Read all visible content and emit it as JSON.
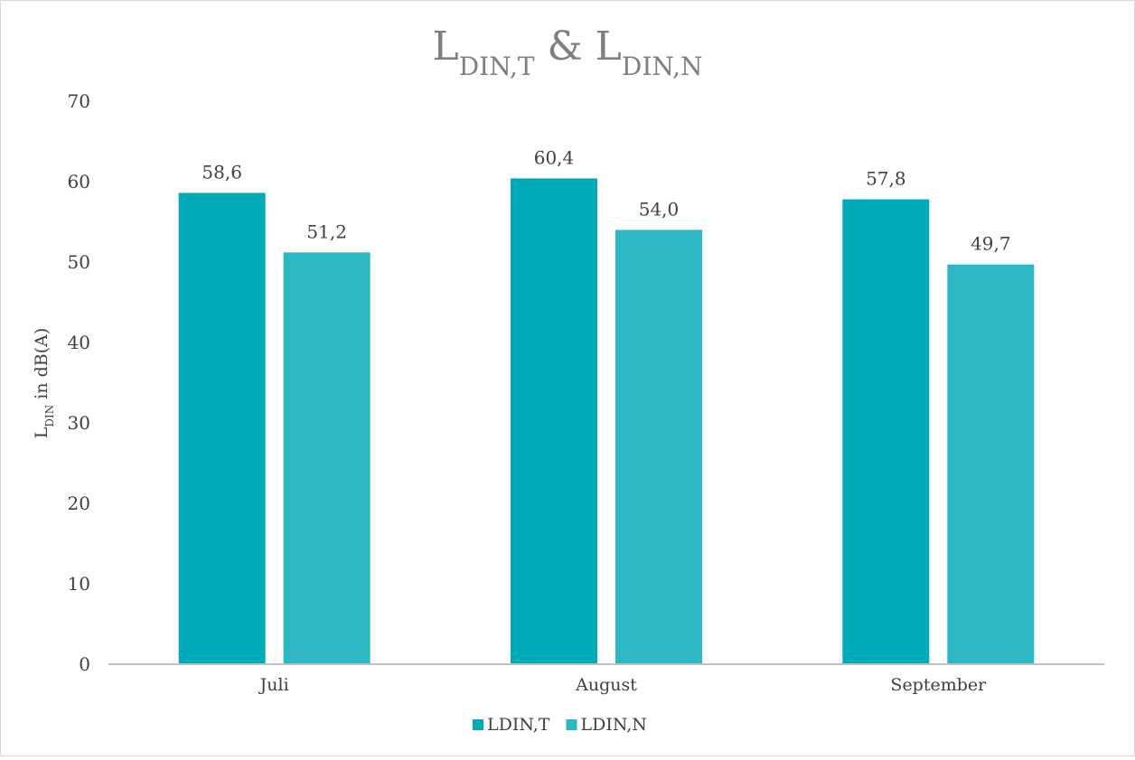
{
  "chart_data": {
    "type": "bar",
    "title": [
      {
        "text": "L",
        "sub": false
      },
      {
        "text": "DIN,T",
        "sub": true
      },
      {
        "text": " & L",
        "sub": false
      },
      {
        "text": "DIN,N",
        "sub": true
      }
    ],
    "y_label": [
      {
        "text": "L",
        "sub": false
      },
      {
        "text": "DIN",
        "sub": true
      },
      {
        "text": " in dB(A)",
        "sub": false
      }
    ],
    "categories": [
      "Juli",
      "August",
      "September"
    ],
    "series": [
      {
        "name": "LDIN,T",
        "color": "#00abb9",
        "values": [
          58.6,
          60.4,
          57.8
        ],
        "value_labels": [
          "58,6",
          "60,4",
          "57,8"
        ]
      },
      {
        "name": "LDIN,N",
        "color": "#2bb8c3",
        "values": [
          51.2,
          54.0,
          49.7
        ],
        "value_labels": [
          "51,2",
          "54,0",
          "49,7"
        ]
      }
    ],
    "ylim": [
      0,
      70
    ],
    "yticks": [
      0,
      10,
      20,
      30,
      40,
      50,
      60,
      70
    ],
    "grid": false,
    "legend": "bottom"
  }
}
